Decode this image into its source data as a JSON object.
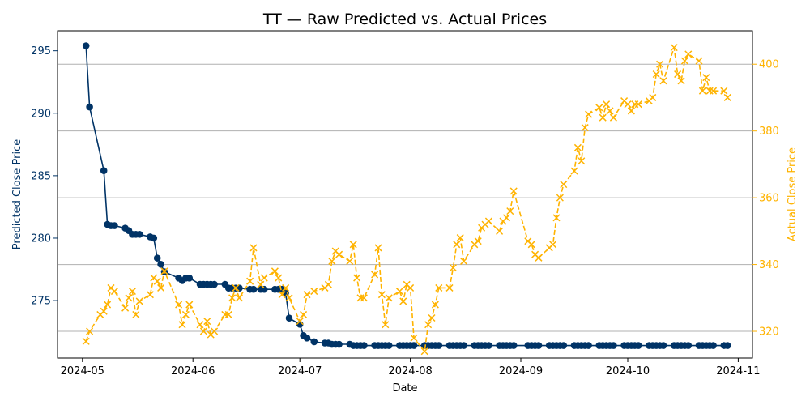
{
  "chart_data": {
    "type": "line",
    "title": "TT — Raw Predicted vs. Actual Prices",
    "xlabel": "Date",
    "x_ticks": [
      "2024-05",
      "2024-06",
      "2024-07",
      "2024-08",
      "2024-09",
      "2024-10",
      "2024-11"
    ],
    "x_tick_dates": [
      "2024-05-01",
      "2024-06-01",
      "2024-07-01",
      "2024-08-01",
      "2024-09-01",
      "2024-10-01",
      "2024-11-01"
    ],
    "xlim": [
      "2024-04-24",
      "2024-11-05"
    ],
    "grid": "horizontal (right axis)",
    "colors": {
      "predicted": "#003366",
      "actual": "#ffb300",
      "grid": "#b0b0b0",
      "axis": "#000000"
    },
    "left_axis": {
      "label": "Predicted Close Price",
      "ylim": [
        270.4,
        296.6
      ],
      "ticks": [
        275,
        280,
        285,
        290,
        295
      ]
    },
    "right_axis": {
      "label": "Actual Close Price",
      "ylim": [
        312,
        410
      ],
      "ticks": [
        320,
        340,
        360,
        380,
        400
      ]
    },
    "series": [
      {
        "axis": "left",
        "style": "solid line, circle markers",
        "points": [
          [
            "2024-05-02",
            295.4
          ],
          [
            "2024-05-03",
            290.5
          ],
          [
            "2024-05-07",
            285.4
          ],
          [
            "2024-05-08",
            281.1
          ],
          [
            "2024-05-09",
            281.0
          ],
          [
            "2024-05-10",
            281.0
          ],
          [
            "2024-05-13",
            280.8
          ],
          [
            "2024-05-14",
            280.6
          ],
          [
            "2024-05-15",
            280.3
          ],
          [
            "2024-05-16",
            280.3
          ],
          [
            "2024-05-17",
            280.3
          ],
          [
            "2024-05-20",
            280.1
          ],
          [
            "2024-05-21",
            280.0
          ],
          [
            "2024-05-22",
            278.4
          ],
          [
            "2024-05-23",
            277.9
          ],
          [
            "2024-05-24",
            277.3
          ],
          [
            "2024-05-28",
            276.8
          ],
          [
            "2024-05-29",
            276.6
          ],
          [
            "2024-05-30",
            276.8
          ],
          [
            "2024-05-31",
            276.8
          ],
          [
            "2024-06-03",
            276.3
          ],
          [
            "2024-06-04",
            276.3
          ],
          [
            "2024-06-05",
            276.3
          ],
          [
            "2024-06-06",
            276.3
          ],
          [
            "2024-06-07",
            276.3
          ],
          [
            "2024-06-10",
            276.3
          ],
          [
            "2024-06-11",
            276.0
          ],
          [
            "2024-06-12",
            276.0
          ],
          [
            "2024-06-13",
            276.0
          ],
          [
            "2024-06-14",
            276.0
          ],
          [
            "2024-06-17",
            275.9
          ],
          [
            "2024-06-18",
            275.9
          ],
          [
            "2024-06-20",
            275.9
          ],
          [
            "2024-06-21",
            275.9
          ],
          [
            "2024-06-24",
            275.9
          ],
          [
            "2024-06-25",
            275.9
          ],
          [
            "2024-06-26",
            275.9
          ],
          [
            "2024-06-27",
            275.6
          ],
          [
            "2024-06-28",
            273.6
          ],
          [
            "2024-07-01",
            273.1
          ],
          [
            "2024-07-02",
            272.2
          ],
          [
            "2024-07-03",
            272.0
          ],
          [
            "2024-07-05",
            271.7
          ],
          [
            "2024-07-08",
            271.6
          ],
          [
            "2024-07-09",
            271.6
          ],
          [
            "2024-07-10",
            271.5
          ],
          [
            "2024-07-11",
            271.5
          ],
          [
            "2024-07-12",
            271.5
          ],
          [
            "2024-07-15",
            271.5
          ],
          [
            "2024-07-16",
            271.4
          ],
          [
            "2024-07-17",
            271.4
          ],
          [
            "2024-07-18",
            271.4
          ],
          [
            "2024-07-19",
            271.4
          ],
          [
            "2024-07-22",
            271.4
          ],
          [
            "2024-07-23",
            271.4
          ],
          [
            "2024-07-24",
            271.4
          ],
          [
            "2024-07-25",
            271.4
          ],
          [
            "2024-07-26",
            271.4
          ],
          [
            "2024-07-29",
            271.4
          ],
          [
            "2024-07-30",
            271.4
          ],
          [
            "2024-07-31",
            271.4
          ],
          [
            "2024-08-01",
            271.4
          ],
          [
            "2024-08-02",
            271.4
          ],
          [
            "2024-08-05",
            271.4
          ],
          [
            "2024-08-06",
            271.4
          ],
          [
            "2024-08-07",
            271.4
          ],
          [
            "2024-08-08",
            271.4
          ],
          [
            "2024-08-09",
            271.4
          ],
          [
            "2024-08-12",
            271.4
          ],
          [
            "2024-08-13",
            271.4
          ],
          [
            "2024-08-14",
            271.4
          ],
          [
            "2024-08-15",
            271.4
          ],
          [
            "2024-08-16",
            271.4
          ],
          [
            "2024-08-19",
            271.4
          ],
          [
            "2024-08-20",
            271.4
          ],
          [
            "2024-08-21",
            271.4
          ],
          [
            "2024-08-22",
            271.4
          ],
          [
            "2024-08-23",
            271.4
          ],
          [
            "2024-08-26",
            271.4
          ],
          [
            "2024-08-27",
            271.4
          ],
          [
            "2024-08-28",
            271.4
          ],
          [
            "2024-08-29",
            271.4
          ],
          [
            "2024-08-30",
            271.4
          ],
          [
            "2024-09-03",
            271.4
          ],
          [
            "2024-09-04",
            271.4
          ],
          [
            "2024-09-05",
            271.4
          ],
          [
            "2024-09-06",
            271.4
          ],
          [
            "2024-09-09",
            271.4
          ],
          [
            "2024-09-10",
            271.4
          ],
          [
            "2024-09-11",
            271.4
          ],
          [
            "2024-09-12",
            271.4
          ],
          [
            "2024-09-13",
            271.4
          ],
          [
            "2024-09-16",
            271.4
          ],
          [
            "2024-09-17",
            271.4
          ],
          [
            "2024-09-18",
            271.4
          ],
          [
            "2024-09-19",
            271.4
          ],
          [
            "2024-09-20",
            271.4
          ],
          [
            "2024-09-23",
            271.4
          ],
          [
            "2024-09-24",
            271.4
          ],
          [
            "2024-09-25",
            271.4
          ],
          [
            "2024-09-26",
            271.4
          ],
          [
            "2024-09-27",
            271.4
          ],
          [
            "2024-09-30",
            271.4
          ],
          [
            "2024-10-01",
            271.4
          ],
          [
            "2024-10-02",
            271.4
          ],
          [
            "2024-10-03",
            271.4
          ],
          [
            "2024-10-04",
            271.4
          ],
          [
            "2024-10-07",
            271.4
          ],
          [
            "2024-10-08",
            271.4
          ],
          [
            "2024-10-09",
            271.4
          ],
          [
            "2024-10-10",
            271.4
          ],
          [
            "2024-10-11",
            271.4
          ],
          [
            "2024-10-14",
            271.4
          ],
          [
            "2024-10-15",
            271.4
          ],
          [
            "2024-10-16",
            271.4
          ],
          [
            "2024-10-17",
            271.4
          ],
          [
            "2024-10-18",
            271.4
          ],
          [
            "2024-10-21",
            271.4
          ],
          [
            "2024-10-22",
            271.4
          ],
          [
            "2024-10-23",
            271.4
          ],
          [
            "2024-10-24",
            271.4
          ],
          [
            "2024-10-25",
            271.4
          ],
          [
            "2024-10-28",
            271.4
          ],
          [
            "2024-10-29",
            271.4
          ]
        ]
      },
      {
        "axis": "right",
        "style": "dashed line, x markers",
        "points": [
          [
            "2024-05-02",
            317
          ],
          [
            "2024-05-03",
            320
          ],
          [
            "2024-05-06",
            325
          ],
          [
            "2024-05-07",
            326
          ],
          [
            "2024-05-08",
            328
          ],
          [
            "2024-05-09",
            333
          ],
          [
            "2024-05-10",
            332
          ],
          [
            "2024-05-13",
            327
          ],
          [
            "2024-05-14",
            330
          ],
          [
            "2024-05-15",
            332
          ],
          [
            "2024-05-16",
            325
          ],
          [
            "2024-05-17",
            329
          ],
          [
            "2024-05-20",
            331
          ],
          [
            "2024-05-21",
            336
          ],
          [
            "2024-05-22",
            335
          ],
          [
            "2024-05-23",
            333
          ],
          [
            "2024-05-24",
            338
          ],
          [
            "2024-05-28",
            328
          ],
          [
            "2024-05-29",
            322
          ],
          [
            "2024-05-30",
            325
          ],
          [
            "2024-05-31",
            328
          ],
          [
            "2024-06-03",
            322
          ],
          [
            "2024-06-04",
            320
          ],
          [
            "2024-06-05",
            323
          ],
          [
            "2024-06-06",
            319
          ],
          [
            "2024-06-07",
            320
          ],
          [
            "2024-06-10",
            325
          ],
          [
            "2024-06-11",
            325
          ],
          [
            "2024-06-12",
            330
          ],
          [
            "2024-06-13",
            333
          ],
          [
            "2024-06-14",
            330
          ],
          [
            "2024-06-17",
            335
          ],
          [
            "2024-06-18",
            345
          ],
          [
            "2024-06-20",
            334
          ],
          [
            "2024-06-21",
            336
          ],
          [
            "2024-06-24",
            338
          ],
          [
            "2024-06-25",
            336
          ],
          [
            "2024-06-26",
            331
          ],
          [
            "2024-06-27",
            333
          ],
          [
            "2024-06-28",
            330
          ],
          [
            "2024-07-01",
            323
          ],
          [
            "2024-07-02",
            325
          ],
          [
            "2024-07-03",
            331
          ],
          [
            "2024-07-05",
            332
          ],
          [
            "2024-07-08",
            333
          ],
          [
            "2024-07-09",
            334
          ],
          [
            "2024-07-10",
            341
          ],
          [
            "2024-07-11",
            344
          ],
          [
            "2024-07-12",
            343
          ],
          [
            "2024-07-15",
            341
          ],
          [
            "2024-07-16",
            346
          ],
          [
            "2024-07-17",
            336
          ],
          [
            "2024-07-18",
            330
          ],
          [
            "2024-07-19",
            330
          ],
          [
            "2024-07-22",
            337
          ],
          [
            "2024-07-23",
            345
          ],
          [
            "2024-07-24",
            331
          ],
          [
            "2024-07-25",
            322
          ],
          [
            "2024-07-26",
            330
          ],
          [
            "2024-07-29",
            332
          ],
          [
            "2024-07-30",
            329
          ],
          [
            "2024-07-31",
            334
          ],
          [
            "2024-08-01",
            333
          ],
          [
            "2024-08-02",
            318
          ],
          [
            "2024-08-05",
            314
          ],
          [
            "2024-08-06",
            322
          ],
          [
            "2024-08-07",
            324
          ],
          [
            "2024-08-08",
            328
          ],
          [
            "2024-08-09",
            333
          ],
          [
            "2024-08-12",
            333
          ],
          [
            "2024-08-13",
            339
          ],
          [
            "2024-08-14",
            346
          ],
          [
            "2024-08-15",
            348
          ],
          [
            "2024-08-16",
            341
          ],
          [
            "2024-08-19",
            346
          ],
          [
            "2024-08-20",
            347
          ],
          [
            "2024-08-21",
            351
          ],
          [
            "2024-08-22",
            352
          ],
          [
            "2024-08-23",
            353
          ],
          [
            "2024-08-26",
            350
          ],
          [
            "2024-08-27",
            353
          ],
          [
            "2024-08-28",
            354
          ],
          [
            "2024-08-29",
            356
          ],
          [
            "2024-08-30",
            362
          ],
          [
            "2024-09-03",
            347
          ],
          [
            "2024-09-04",
            346
          ],
          [
            "2024-09-05",
            343
          ],
          [
            "2024-09-06",
            342
          ],
          [
            "2024-09-09",
            345
          ],
          [
            "2024-09-10",
            346
          ],
          [
            "2024-09-11",
            354
          ],
          [
            "2024-09-12",
            360
          ],
          [
            "2024-09-13",
            364
          ],
          [
            "2024-09-16",
            368
          ],
          [
            "2024-09-17",
            375
          ],
          [
            "2024-09-18",
            371
          ],
          [
            "2024-09-19",
            381
          ],
          [
            "2024-09-20",
            385
          ],
          [
            "2024-09-23",
            387
          ],
          [
            "2024-09-24",
            384
          ],
          [
            "2024-09-25",
            388
          ],
          [
            "2024-09-26",
            386
          ],
          [
            "2024-09-27",
            384
          ],
          [
            "2024-09-30",
            389
          ],
          [
            "2024-10-01",
            388
          ],
          [
            "2024-10-02",
            386
          ],
          [
            "2024-10-03",
            388
          ],
          [
            "2024-10-04",
            388
          ],
          [
            "2024-10-07",
            389
          ],
          [
            "2024-10-08",
            390
          ],
          [
            "2024-10-09",
            397
          ],
          [
            "2024-10-10",
            400
          ],
          [
            "2024-10-11",
            395
          ],
          [
            "2024-10-14",
            405
          ],
          [
            "2024-10-15",
            397
          ],
          [
            "2024-10-16",
            395
          ],
          [
            "2024-10-17",
            401
          ],
          [
            "2024-10-18",
            403
          ],
          [
            "2024-10-21",
            401
          ],
          [
            "2024-10-22",
            392
          ],
          [
            "2024-10-23",
            396
          ],
          [
            "2024-10-24",
            392
          ],
          [
            "2024-10-25",
            392
          ],
          [
            "2024-10-28",
            392
          ],
          [
            "2024-10-29",
            390
          ]
        ]
      }
    ]
  }
}
